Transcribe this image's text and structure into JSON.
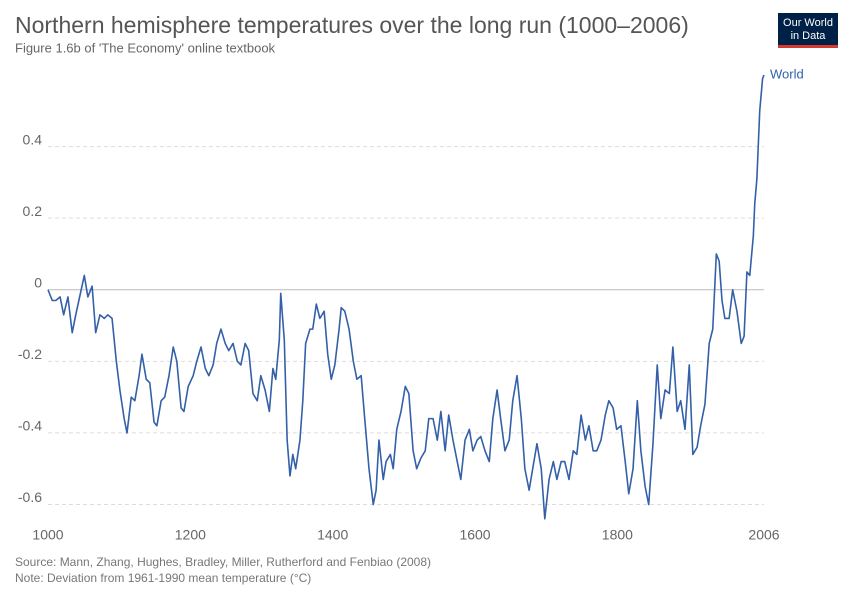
{
  "logo": {
    "line1": "Our World",
    "line2": "in Data"
  },
  "chart_data": {
    "type": "line",
    "title": "Northern hemisphere temperatures over the long run (1000–2006)",
    "subtitle": "Figure 1.6b of 'The Economy' online textbook",
    "source": "Source: Mann, Zhang, Hughes, Bradley, Miller, Rutherford and Fenbiao (2008)",
    "note": "Note: Deviation from 1961-1990 mean temperature (°C)",
    "x": [
      1000,
      1006,
      1011,
      1017,
      1022,
      1028,
      1034,
      1039,
      1051,
      1056,
      1062,
      1067,
      1073,
      1079,
      1084,
      1090,
      1096,
      1101,
      1107,
      1111,
      1117,
      1122,
      1128,
      1132,
      1138,
      1143,
      1149,
      1153,
      1159,
      1164,
      1170,
      1176,
      1181,
      1187,
      1191,
      1197,
      1204,
      1209,
      1215,
      1221,
      1226,
      1232,
      1237,
      1243,
      1249,
      1254,
      1260,
      1266,
      1271,
      1277,
      1282,
      1288,
      1294,
      1299,
      1305,
      1311,
      1316,
      1320,
      1325,
      1327,
      1332,
      1336,
      1340,
      1344,
      1348,
      1354,
      1358,
      1362,
      1368,
      1372,
      1377,
      1382,
      1388,
      1393,
      1398,
      1403,
      1409,
      1412,
      1417,
      1423,
      1429,
      1434,
      1440,
      1445,
      1451,
      1457,
      1461,
      1465,
      1471,
      1475,
      1481,
      1485,
      1490,
      1496,
      1502,
      1507,
      1513,
      1518,
      1524,
      1530,
      1535,
      1541,
      1547,
      1552,
      1558,
      1563,
      1569,
      1575,
      1580,
      1586,
      1592,
      1597,
      1603,
      1608,
      1614,
      1620,
      1625,
      1631,
      1636,
      1642,
      1648,
      1653,
      1659,
      1665,
      1670,
      1676,
      1681,
      1687,
      1693,
      1698,
      1704,
      1710,
      1715,
      1721,
      1726,
      1732,
      1738,
      1743,
      1749,
      1755,
      1760,
      1766,
      1771,
      1777,
      1783,
      1788,
      1794,
      1799,
      1805,
      1811,
      1816,
      1822,
      1828,
      1833,
      1839,
      1844,
      1850,
      1856,
      1861,
      1867,
      1873,
      1878,
      1884,
      1889,
      1895,
      1901,
      1906,
      1912,
      1917,
      1923,
      1929,
      1934,
      1939,
      1943,
      1947,
      1951,
      1957,
      1962,
      1968,
      1974,
      1978,
      1982,
      1986,
      1991,
      1993,
      1996,
      2000,
      2004,
      2006
    ],
    "series": [
      {
        "name": "World",
        "color": "#3360a9",
        "values": [
          0.0,
          -0.03,
          -0.03,
          -0.02,
          -0.07,
          -0.02,
          -0.12,
          -0.07,
          0.04,
          -0.02,
          0.01,
          -0.12,
          -0.07,
          -0.08,
          -0.07,
          -0.08,
          -0.2,
          -0.28,
          -0.36,
          -0.4,
          -0.3,
          -0.31,
          -0.24,
          -0.18,
          -0.25,
          -0.26,
          -0.37,
          -0.38,
          -0.31,
          -0.3,
          -0.24,
          -0.16,
          -0.2,
          -0.33,
          -0.34,
          -0.27,
          -0.24,
          -0.2,
          -0.16,
          -0.22,
          -0.24,
          -0.21,
          -0.15,
          -0.11,
          -0.15,
          -0.17,
          -0.15,
          -0.2,
          -0.21,
          -0.15,
          -0.17,
          -0.29,
          -0.31,
          -0.24,
          -0.28,
          -0.34,
          -0.22,
          -0.25,
          -0.14,
          -0.01,
          -0.14,
          -0.42,
          -0.52,
          -0.46,
          -0.5,
          -0.42,
          -0.31,
          -0.15,
          -0.11,
          -0.11,
          -0.04,
          -0.08,
          -0.06,
          -0.18,
          -0.25,
          -0.21,
          -0.11,
          -0.05,
          -0.06,
          -0.11,
          -0.2,
          -0.25,
          -0.24,
          -0.36,
          -0.5,
          -0.6,
          -0.56,
          -0.42,
          -0.53,
          -0.48,
          -0.46,
          -0.5,
          -0.39,
          -0.34,
          -0.27,
          -0.29,
          -0.45,
          -0.5,
          -0.47,
          -0.45,
          -0.36,
          -0.36,
          -0.42,
          -0.34,
          -0.45,
          -0.35,
          -0.42,
          -0.48,
          -0.53,
          -0.42,
          -0.39,
          -0.45,
          -0.42,
          -0.41,
          -0.45,
          -0.48,
          -0.36,
          -0.28,
          -0.36,
          -0.45,
          -0.42,
          -0.31,
          -0.24,
          -0.36,
          -0.5,
          -0.56,
          -0.5,
          -0.43,
          -0.5,
          -0.64,
          -0.53,
          -0.48,
          -0.53,
          -0.48,
          -0.48,
          -0.53,
          -0.45,
          -0.46,
          -0.35,
          -0.42,
          -0.38,
          -0.45,
          -0.45,
          -0.42,
          -0.35,
          -0.31,
          -0.33,
          -0.39,
          -0.38,
          -0.48,
          -0.57,
          -0.5,
          -0.31,
          -0.45,
          -0.55,
          -0.6,
          -0.43,
          -0.21,
          -0.36,
          -0.28,
          -0.29,
          -0.16,
          -0.34,
          -0.31,
          -0.39,
          -0.21,
          -0.46,
          -0.44,
          -0.38,
          -0.32,
          -0.15,
          -0.11,
          0.1,
          0.08,
          -0.03,
          -0.08,
          -0.08,
          0.0,
          -0.06,
          -0.15,
          -0.13,
          0.05,
          0.04,
          0.15,
          0.24,
          0.31,
          0.5,
          0.59,
          0.6
        ]
      }
    ],
    "xlim": [
      1000,
      2006
    ],
    "xticks": [
      1000,
      1200,
      1400,
      1600,
      1800,
      2006
    ],
    "ylim": [
      -0.66,
      0.6
    ],
    "yticks": [
      -0.6,
      -0.4,
      -0.2,
      0,
      0.2,
      0.4
    ],
    "grid": true
  }
}
